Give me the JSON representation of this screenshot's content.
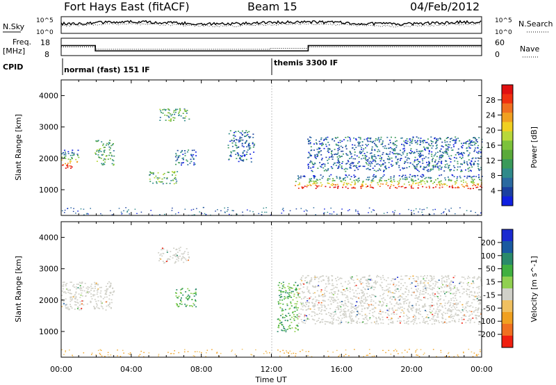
{
  "header": {
    "station": "Fort Hays East (fitACF)",
    "beam": "Beam 15",
    "date": "04/Feb/2012"
  },
  "noise_panel": {
    "left_label": "N.Sky",
    "right_label": "N.Search",
    "tick_top": "10^5",
    "tick_bottom": "10^0"
  },
  "freq_panel": {
    "left_label": "Freq.",
    "left_units": "[MHz]",
    "right_label": "Nave",
    "left_ticks": [
      "18",
      "8"
    ],
    "right_ticks": [
      "60",
      "0"
    ],
    "freq_segments": [
      {
        "start_h": 0.0,
        "end_h": 1.95,
        "freq_mhz": 13.8
      },
      {
        "start_h": 1.95,
        "end_h": 14.1,
        "freq_mhz": 10.7
      },
      {
        "start_h": 14.1,
        "end_h": 24.0,
        "freq_mhz": 13.8
      }
    ],
    "nave_segments": [
      {
        "start_h": 0.0,
        "end_h": 1.95,
        "nave": 30
      },
      {
        "start_h": 1.95,
        "end_h": 11.9,
        "nave": 22
      },
      {
        "start_h": 11.9,
        "end_h": 14.1,
        "nave": 25
      },
      {
        "start_h": 14.1,
        "end_h": 24.0,
        "nave": 30
      }
    ]
  },
  "cpid": {
    "label": "CPID",
    "modes": [
      {
        "text": "normal (fast) 151 IF",
        "start_h": 0.0
      },
      {
        "text": "themis 3300 IF",
        "start_h": 11.9
      }
    ]
  },
  "chart_data": [
    {
      "type": "heatmap",
      "name": "power",
      "ylabel": "Slant Range [km]",
      "ylim": [
        180,
        4500
      ],
      "yticks": [
        1000,
        2000,
        3000,
        4000
      ],
      "xlim": [
        0,
        24
      ],
      "colorbar": {
        "label": "Power [dB]",
        "ticks": [
          "28",
          "24",
          "20",
          "16",
          "12",
          "8",
          "4"
        ],
        "colors": [
          "#1020e0",
          "#1a40a0",
          "#2a6aa0",
          "#2f8a8a",
          "#3a9a5a",
          "#5aaa3a",
          "#7cc23a",
          "#b8d83a",
          "#f0d020",
          "#f0a020",
          "#f07020",
          "#f03010",
          "#e01010"
        ]
      },
      "features": [
        {
          "start_h": 0.0,
          "end_h": 1.0,
          "range_km_low": 1700,
          "range_km_high": 2300,
          "level": "high"
        },
        {
          "start_h": 1.9,
          "end_h": 3.0,
          "range_km_low": 1800,
          "range_km_high": 2600,
          "level": "medium"
        },
        {
          "start_h": 5.0,
          "end_h": 6.6,
          "range_km_low": 1200,
          "range_km_high": 1600,
          "level": "medium"
        },
        {
          "start_h": 5.5,
          "end_h": 7.3,
          "range_km_low": 3200,
          "range_km_high": 3600,
          "level": "medium"
        },
        {
          "start_h": 6.5,
          "end_h": 7.7,
          "range_km_low": 1800,
          "range_km_high": 2300,
          "level": "low"
        },
        {
          "start_h": 9.5,
          "end_h": 11.0,
          "range_km_low": 1900,
          "range_km_high": 2900,
          "level": "low"
        },
        {
          "start_h": 13.3,
          "end_h": 24.0,
          "range_km_low": 1050,
          "range_km_high": 1500,
          "level": "high"
        },
        {
          "start_h": 14.0,
          "end_h": 24.0,
          "range_km_low": 1600,
          "range_km_high": 2700,
          "level": "low"
        }
      ]
    },
    {
      "type": "heatmap",
      "name": "velocity",
      "ylabel": "Slant Range [km]",
      "xlabel": "Time UT",
      "ylim": [
        180,
        4500
      ],
      "yticks": [
        1000,
        2000,
        3000,
        4000
      ],
      "xlim": [
        0,
        24
      ],
      "xticks": [
        "00:00",
        "04:00",
        "08:00",
        "12:00",
        "16:00",
        "20:00",
        "00:00"
      ],
      "colorbar": {
        "label": "Velocity [m s^-1]",
        "ticks": [
          "200",
          "100",
          "50",
          "15",
          "-15",
          "-50",
          "-100",
          "-200"
        ],
        "colors": [
          "#1a2ad0",
          "#1a5aa0",
          "#2a8a6a",
          "#40b040",
          "#90d050",
          "#d0d0c8",
          "#f0c060",
          "#f0a020",
          "#f07020",
          "#f02010"
        ]
      },
      "features": [
        {
          "start_h": 0.0,
          "end_h": 3.0,
          "range_km_low": 1700,
          "range_km_high": 2600,
          "level": "near-zero"
        },
        {
          "start_h": 5.5,
          "end_h": 7.3,
          "range_km_low": 3200,
          "range_km_high": 3700,
          "level": "near-zero"
        },
        {
          "start_h": 6.5,
          "end_h": 7.7,
          "range_km_low": 1800,
          "range_km_high": 2400,
          "level": "positive"
        },
        {
          "start_h": 12.3,
          "end_h": 13.5,
          "range_km_low": 1000,
          "range_km_high": 2600,
          "level": "positive"
        },
        {
          "start_h": 13.5,
          "end_h": 24.0,
          "range_km_low": 1250,
          "range_km_high": 2800,
          "level": "near-zero"
        }
      ]
    }
  ]
}
